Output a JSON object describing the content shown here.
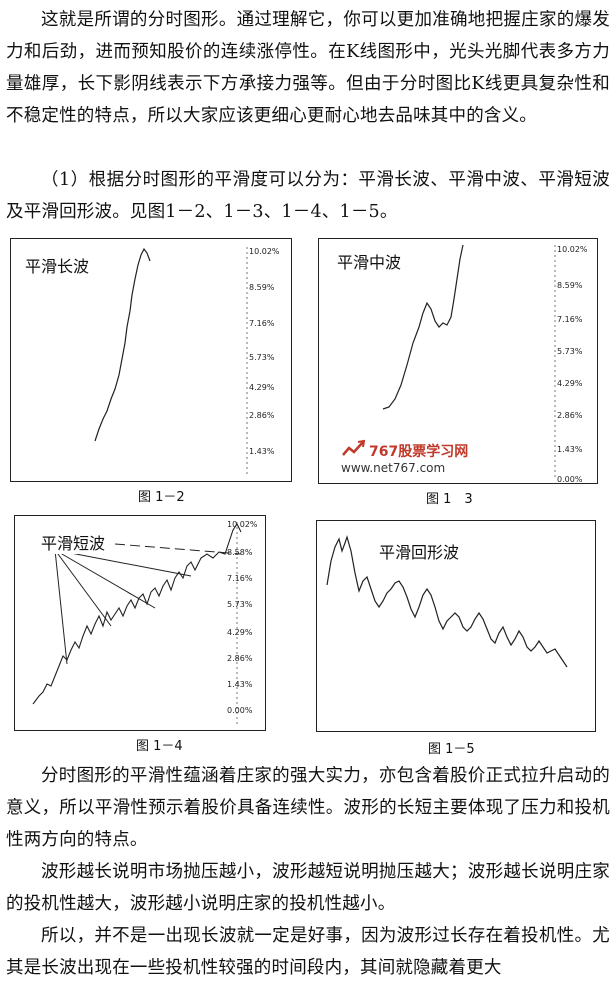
{
  "paragraphs": {
    "p1": "这就是所谓的分时图形。通过理解它，你可以更加准确地把握庄家的爆发力和后劲，进而预知股价的连续涨停性。在K线图形中，光头光脚代表多方力量雄厚，长下影阴线表示下方承接力强等。但由于分时图比K线更具复杂性和不稳定性的特点，所以大家应该更细心更耐心地去品味其中的含义。",
    "p2": "（1）根据分时图形的平滑度可以分为：平滑长波、平滑中波、平滑短波及平滑回形波。见图1－2、1－3、1－4、1－5。",
    "p3": "分时图形的平滑性蕴涵着庄家的强大实力，亦包含着股价正式拉升启动的意义，所以平滑性预示着股价具备连续性。波形的长短主要体现了压力和投机性两方向的特点。",
    "p4": "波形越长说明市场抛压越小，波形越短说明抛压越大；波形越长说明庄家的投机性越大，波形越小说明庄家的投机性越小。",
    "p5": "所以，并不是一出现长波就一定是好事，因为波形过长存在着投机性。尤其是长波出现在一些投机性较强的时间段内，其间就隐藏着更大"
  },
  "figures": {
    "f1": {
      "title": "平滑长波",
      "caption": "图 1－2",
      "ticks": [
        "10.02%",
        "8.59%",
        "7.16%",
        "5.73%",
        "4.29%",
        "2.86%",
        "1.43%"
      ]
    },
    "f2": {
      "title": "平滑中波",
      "caption": "图 1　3",
      "ticks": [
        "10.02%",
        "8.59%",
        "7.16%",
        "5.73%",
        "4.29%",
        "2.86%",
        "1.43%",
        "0.00%"
      ]
    },
    "f3": {
      "title": "平滑短波",
      "caption": "图 1－4",
      "ticks": [
        "10.02%",
        "8.58%",
        "7.16%",
        "5.73%",
        "4.29%",
        "2.86%",
        "1.43%",
        "0.00%"
      ]
    },
    "f4": {
      "title": "平滑回形波",
      "caption": "图 1－5"
    }
  },
  "watermark": {
    "brand": "767股票学习网",
    "url": "www.net767.com",
    "brand_color": "#c0392b"
  }
}
